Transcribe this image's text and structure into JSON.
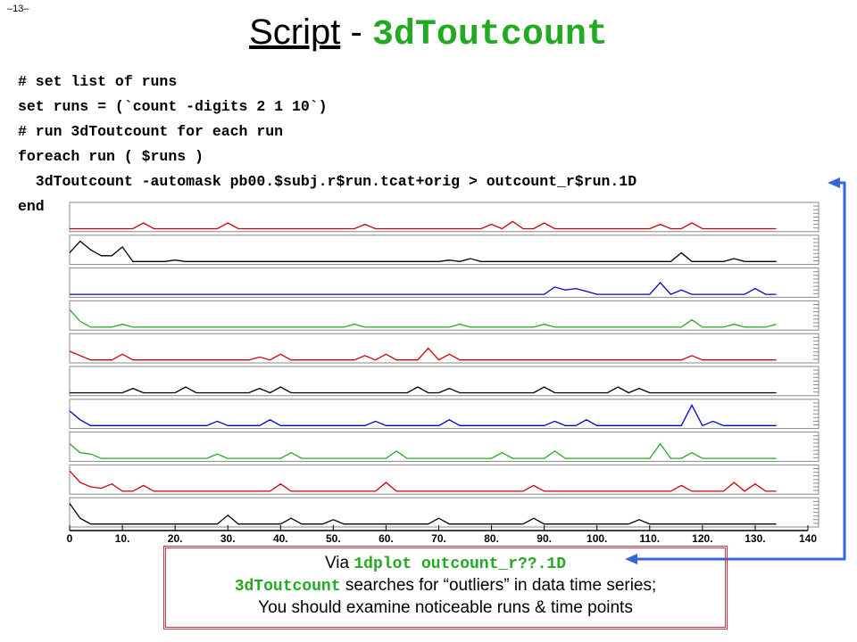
{
  "page_number": "–13–",
  "title": {
    "link": "Script",
    "separator": "-",
    "command": "3dToutcount"
  },
  "code": [
    "# set list of runs",
    "set runs = (`count -digits 2 1 10`)",
    "# run 3dToutcount for each run",
    "foreach run ( $runs )",
    "  3dToutcount -automask pb00.$subj.r$run.tcat+orig > outcount_r$run.1D",
    "end"
  ],
  "note": {
    "line1_prefix": "Via",
    "line1_command": "1dplot outcount_r??.1D",
    "line2_command": "3dToutcount",
    "line2_text": "searches for “outliers” in data time series;",
    "line3": "You should examine noticeable runs & time points"
  },
  "chart_data": {
    "type": "line",
    "x": [
      0,
      2,
      4,
      6,
      8,
      10,
      12,
      14,
      16,
      18,
      20,
      22,
      24,
      26,
      28,
      30,
      32,
      34,
      36,
      38,
      40,
      42,
      44,
      46,
      48,
      50,
      52,
      54,
      56,
      58,
      60,
      62,
      64,
      66,
      68,
      70,
      72,
      74,
      76,
      78,
      80,
      82,
      84,
      86,
      88,
      90,
      92,
      94,
      96,
      98,
      100,
      102,
      104,
      106,
      108,
      110,
      112,
      114,
      116,
      118,
      120,
      122,
      124,
      126,
      128,
      130,
      132,
      134
    ],
    "xlim": [
      0,
      140
    ],
    "xticks": [
      0,
      {
        "value": 10,
        "label": "10."
      },
      {
        "value": 20,
        "label": "20."
      },
      {
        "value": 30,
        "label": "30."
      },
      {
        "value": 40,
        "label": "40."
      },
      {
        "value": 50,
        "label": "50."
      },
      {
        "value": 60,
        "label": "60."
      },
      {
        "value": 70,
        "label": "70."
      },
      {
        "value": 80,
        "label": "80."
      },
      {
        "value": 90,
        "label": "90."
      },
      {
        "value": 100,
        "label": "100."
      },
      {
        "value": 110,
        "label": "110."
      },
      {
        "value": 120,
        "label": "120."
      },
      {
        "value": 130,
        "label": "130."
      },
      {
        "value": 140,
        "label": "140"
      }
    ],
    "ylim": [
      0,
      1
    ],
    "series": [
      {
        "color": "#cc0000",
        "values": [
          0.1,
          0.1,
          0.1,
          0.1,
          0.1,
          0.1,
          0.1,
          0.3,
          0.1,
          0.1,
          0.1,
          0.1,
          0.1,
          0.1,
          0.1,
          0.3,
          0.1,
          0.1,
          0.1,
          0.1,
          0.1,
          0.1,
          0.1,
          0.1,
          0.1,
          0.1,
          0.1,
          0.1,
          0.25,
          0.1,
          0.1,
          0.1,
          0.1,
          0.1,
          0.1,
          0.1,
          0.1,
          0.1,
          0.1,
          0.1,
          0.25,
          0.1,
          0.35,
          0.1,
          0.1,
          0.3,
          0.1,
          0.1,
          0.1,
          0.1,
          0.1,
          0.1,
          0.1,
          0.1,
          0.1,
          0.1,
          0.25,
          0.1,
          0.1,
          0.3,
          0.1,
          0.1,
          0.1,
          0.1,
          0.1,
          0.1,
          0.1,
          0.1
        ]
      },
      {
        "color": "#000000",
        "values": [
          0.4,
          0.8,
          0.5,
          0.3,
          0.3,
          0.6,
          0.1,
          0.1,
          0.1,
          0.1,
          0.15,
          0.1,
          0.1,
          0.1,
          0.1,
          0.1,
          0.1,
          0.1,
          0.1,
          0.1,
          0.1,
          0.1,
          0.1,
          0.1,
          0.1,
          0.1,
          0.1,
          0.1,
          0.1,
          0.1,
          0.1,
          0.1,
          0.1,
          0.1,
          0.1,
          0.1,
          0.15,
          0.1,
          0.2,
          0.1,
          0.1,
          0.1,
          0.1,
          0.1,
          0.1,
          0.1,
          0.1,
          0.1,
          0.1,
          0.1,
          0.1,
          0.1,
          0.1,
          0.1,
          0.1,
          0.1,
          0.1,
          0.1,
          0.4,
          0.1,
          0.1,
          0.1,
          0.1,
          0.2,
          0.1,
          0.1,
          0.1,
          0.1
        ]
      },
      {
        "color": "#0000cc",
        "values": [
          0.1,
          0.1,
          0.1,
          0.1,
          0.1,
          0.1,
          0.1,
          0.1,
          0.1,
          0.1,
          0.1,
          0.1,
          0.1,
          0.1,
          0.1,
          0.1,
          0.1,
          0.1,
          0.1,
          0.1,
          0.1,
          0.1,
          0.1,
          0.1,
          0.1,
          0.1,
          0.1,
          0.1,
          0.1,
          0.1,
          0.1,
          0.1,
          0.1,
          0.1,
          0.1,
          0.1,
          0.1,
          0.1,
          0.1,
          0.1,
          0.1,
          0.1,
          0.1,
          0.1,
          0.1,
          0.1,
          0.35,
          0.25,
          0.3,
          0.2,
          0.1,
          0.1,
          0.1,
          0.1,
          0.1,
          0.1,
          0.5,
          0.1,
          0.25,
          0.1,
          0.1,
          0.1,
          0.1,
          0.1,
          0.1,
          0.3,
          0.1,
          0.1
        ]
      },
      {
        "color": "#22aa22",
        "values": [
          0.7,
          0.3,
          0.1,
          0.1,
          0.1,
          0.2,
          0.1,
          0.1,
          0.1,
          0.1,
          0.1,
          0.1,
          0.1,
          0.1,
          0.1,
          0.1,
          0.1,
          0.1,
          0.1,
          0.1,
          0.1,
          0.1,
          0.1,
          0.1,
          0.1,
          0.1,
          0.1,
          0.2,
          0.1,
          0.1,
          0.1,
          0.1,
          0.1,
          0.1,
          0.1,
          0.1,
          0.1,
          0.2,
          0.1,
          0.1,
          0.1,
          0.1,
          0.1,
          0.1,
          0.1,
          0.2,
          0.1,
          0.1,
          0.1,
          0.1,
          0.1,
          0.1,
          0.1,
          0.1,
          0.1,
          0.1,
          0.1,
          0.1,
          0.1,
          0.35,
          0.1,
          0.1,
          0.1,
          0.2,
          0.1,
          0.1,
          0.1,
          0.2
        ]
      },
      {
        "color": "#cc0000",
        "values": [
          0.4,
          0.25,
          0.1,
          0.1,
          0.1,
          0.3,
          0.1,
          0.1,
          0.1,
          0.1,
          0.1,
          0.1,
          0.1,
          0.1,
          0.1,
          0.1,
          0.1,
          0.1,
          0.2,
          0.1,
          0.3,
          0.1,
          0.1,
          0.1,
          0.1,
          0.1,
          0.1,
          0.1,
          0.25,
          0.1,
          0.3,
          0.1,
          0.1,
          0.1,
          0.5,
          0.1,
          0.3,
          0.1,
          0.1,
          0.1,
          0.1,
          0.1,
          0.1,
          0.1,
          0.1,
          0.1,
          0.1,
          0.1,
          0.1,
          0.1,
          0.1,
          0.1,
          0.1,
          0.1,
          0.1,
          0.1,
          0.1,
          0.1,
          0.1,
          0.25,
          0.1,
          0.1,
          0.1,
          0.1,
          0.1,
          0.1,
          0.1,
          0.1
        ]
      },
      {
        "color": "#000000",
        "values": [
          0.1,
          0.1,
          0.1,
          0.1,
          0.1,
          0.1,
          0.25,
          0.1,
          0.1,
          0.1,
          0.1,
          0.3,
          0.1,
          0.1,
          0.1,
          0.1,
          0.1,
          0.1,
          0.25,
          0.1,
          0.3,
          0.1,
          0.1,
          0.1,
          0.1,
          0.1,
          0.1,
          0.1,
          0.1,
          0.1,
          0.1,
          0.1,
          0.1,
          0.3,
          0.1,
          0.1,
          0.25,
          0.1,
          0.1,
          0.1,
          0.1,
          0.1,
          0.1,
          0.1,
          0.1,
          0.3,
          0.1,
          0.1,
          0.1,
          0.1,
          0.1,
          0.1,
          0.3,
          0.1,
          0.25,
          0.1,
          0.1,
          0.1,
          0.1,
          0.1,
          0.1,
          0.1,
          0.1,
          0.1,
          0.1,
          0.1,
          0.1,
          0.1
        ]
      },
      {
        "color": "#0000cc",
        "values": [
          0.6,
          0.3,
          0.1,
          0.1,
          0.1,
          0.1,
          0.1,
          0.1,
          0.1,
          0.1,
          0.1,
          0.1,
          0.1,
          0.1,
          0.25,
          0.1,
          0.1,
          0.1,
          0.1,
          0.3,
          0.1,
          0.1,
          0.1,
          0.1,
          0.1,
          0.1,
          0.1,
          0.1,
          0.1,
          0.25,
          0.1,
          0.1,
          0.1,
          0.1,
          0.1,
          0.1,
          0.3,
          0.1,
          0.1,
          0.1,
          0.1,
          0.1,
          0.1,
          0.1,
          0.1,
          0.1,
          0.25,
          0.1,
          0.1,
          0.3,
          0.1,
          0.1,
          0.1,
          0.1,
          0.1,
          0.1,
          0.1,
          0.1,
          0.1,
          0.8,
          0.1,
          0.25,
          0.1,
          0.1,
          0.1,
          0.1,
          0.1,
          0.1
        ]
      },
      {
        "color": "#22aa22",
        "values": [
          0.6,
          0.3,
          0.25,
          0.1,
          0.1,
          0.1,
          0.1,
          0.1,
          0.1,
          0.1,
          0.1,
          0.1,
          0.1,
          0.1,
          0.25,
          0.1,
          0.1,
          0.1,
          0.1,
          0.1,
          0.1,
          0.3,
          0.1,
          0.1,
          0.1,
          0.1,
          0.1,
          0.1,
          0.1,
          0.1,
          0.1,
          0.35,
          0.1,
          0.1,
          0.1,
          0.1,
          0.1,
          0.1,
          0.1,
          0.1,
          0.1,
          0.3,
          0.1,
          0.1,
          0.1,
          0.1,
          0.35,
          0.1,
          0.1,
          0.1,
          0.1,
          0.1,
          0.1,
          0.1,
          0.1,
          0.1,
          0.6,
          0.1,
          0.1,
          0.3,
          0.1,
          0.1,
          0.1,
          0.1,
          0.1,
          0.1,
          0.1,
          0.1
        ]
      },
      {
        "color": "#cc0000",
        "values": [
          0.8,
          0.4,
          0.25,
          0.2,
          0.35,
          0.1,
          0.1,
          0.3,
          0.1,
          0.1,
          0.1,
          0.1,
          0.1,
          0.1,
          0.1,
          0.1,
          0.1,
          0.1,
          0.1,
          0.1,
          0.35,
          0.1,
          0.1,
          0.1,
          0.1,
          0.1,
          0.1,
          0.1,
          0.1,
          0.1,
          0.4,
          0.1,
          0.1,
          0.1,
          0.1,
          0.1,
          0.1,
          0.1,
          0.1,
          0.1,
          0.1,
          0.1,
          0.1,
          0.1,
          0.3,
          0.1,
          0.1,
          0.1,
          0.1,
          0.1,
          0.1,
          0.1,
          0.1,
          0.1,
          0.1,
          0.1,
          0.1,
          0.1,
          0.3,
          0.1,
          0.1,
          0.1,
          0.1,
          0.4,
          0.1,
          0.35,
          0.1,
          0.1
        ]
      },
      {
        "color": "#000000",
        "values": [
          0.8,
          0.3,
          0.1,
          0.1,
          0.1,
          0.1,
          0.1,
          0.1,
          0.1,
          0.1,
          0.1,
          0.1,
          0.1,
          0.1,
          0.1,
          0.4,
          0.1,
          0.1,
          0.1,
          0.1,
          0.1,
          0.3,
          0.1,
          0.1,
          0.1,
          0.25,
          0.1,
          0.1,
          0.1,
          0.1,
          0.1,
          0.1,
          0.1,
          0.1,
          0.1,
          0.3,
          0.1,
          0.1,
          0.1,
          0.1,
          0.1,
          0.1,
          0.1,
          0.1,
          0.3,
          0.1,
          0.1,
          0.1,
          0.1,
          0.1,
          0.1,
          0.1,
          0.1,
          0.1,
          0.25,
          0.1,
          0.1,
          0.1,
          0.1,
          0.1,
          0.1,
          0.1,
          0.1,
          0.1,
          0.1,
          0.1,
          0.1,
          0.1
        ]
      }
    ]
  }
}
